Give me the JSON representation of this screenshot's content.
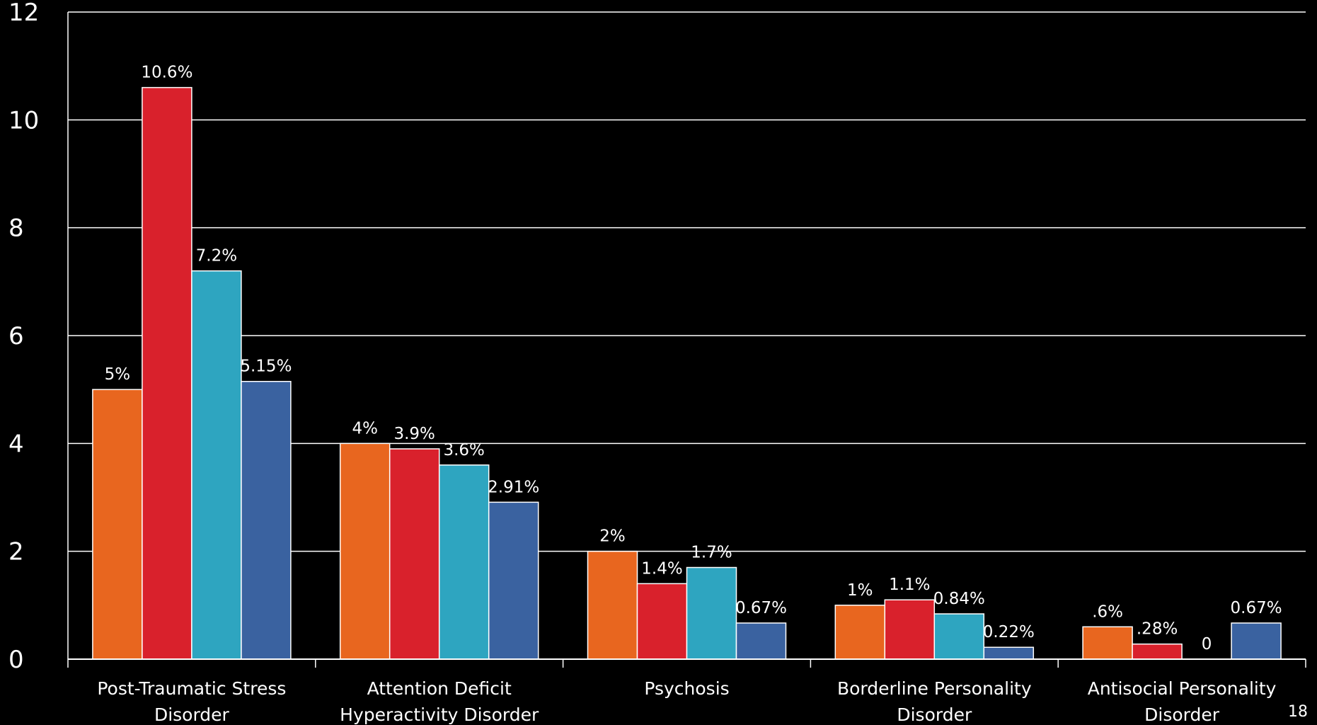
{
  "chart_data": {
    "type": "bar",
    "title": "",
    "xlabel": "",
    "ylabel": "",
    "ylim": [
      0,
      12
    ],
    "yticks": [
      "0",
      "2",
      "4",
      "6",
      "8",
      "10",
      "12"
    ],
    "grid": true,
    "legend": "none",
    "categories": [
      [
        "Post-Traumatic Stress",
        "Disorder"
      ],
      [
        "Attention Deficit",
        "Hyperactivity Disorder"
      ],
      [
        "Psychosis"
      ],
      [
        "Borderline Personality",
        "Disorder"
      ],
      [
        "Antisocial Personality",
        "Disorder"
      ]
    ],
    "series": [
      {
        "color": "#E8661F",
        "values": [
          5,
          4,
          2,
          1,
          0.6
        ],
        "labels": [
          "5%",
          "4%",
          "2%",
          "1%",
          ".6%"
        ]
      },
      {
        "color": "#D9212C",
        "values": [
          10.6,
          3.9,
          1.4,
          1.1,
          0.28
        ],
        "labels": [
          "10.6%",
          "3.9%",
          "1.4%",
          "1.1%",
          ".28%"
        ]
      },
      {
        "color": "#2EA5C0",
        "values": [
          7.2,
          3.6,
          1.7,
          0.84,
          0
        ],
        "labels": [
          "7.2%",
          "3.6%",
          "1.7%",
          "0.84%",
          "0"
        ]
      },
      {
        "color": "#3A62A0",
        "values": [
          5.15,
          2.91,
          0.67,
          0.22,
          0.67
        ],
        "labels": [
          "5.15%",
          "2.91%",
          "0.67%",
          "0.22%",
          "0.67%"
        ]
      }
    ]
  },
  "slide_number": "18"
}
